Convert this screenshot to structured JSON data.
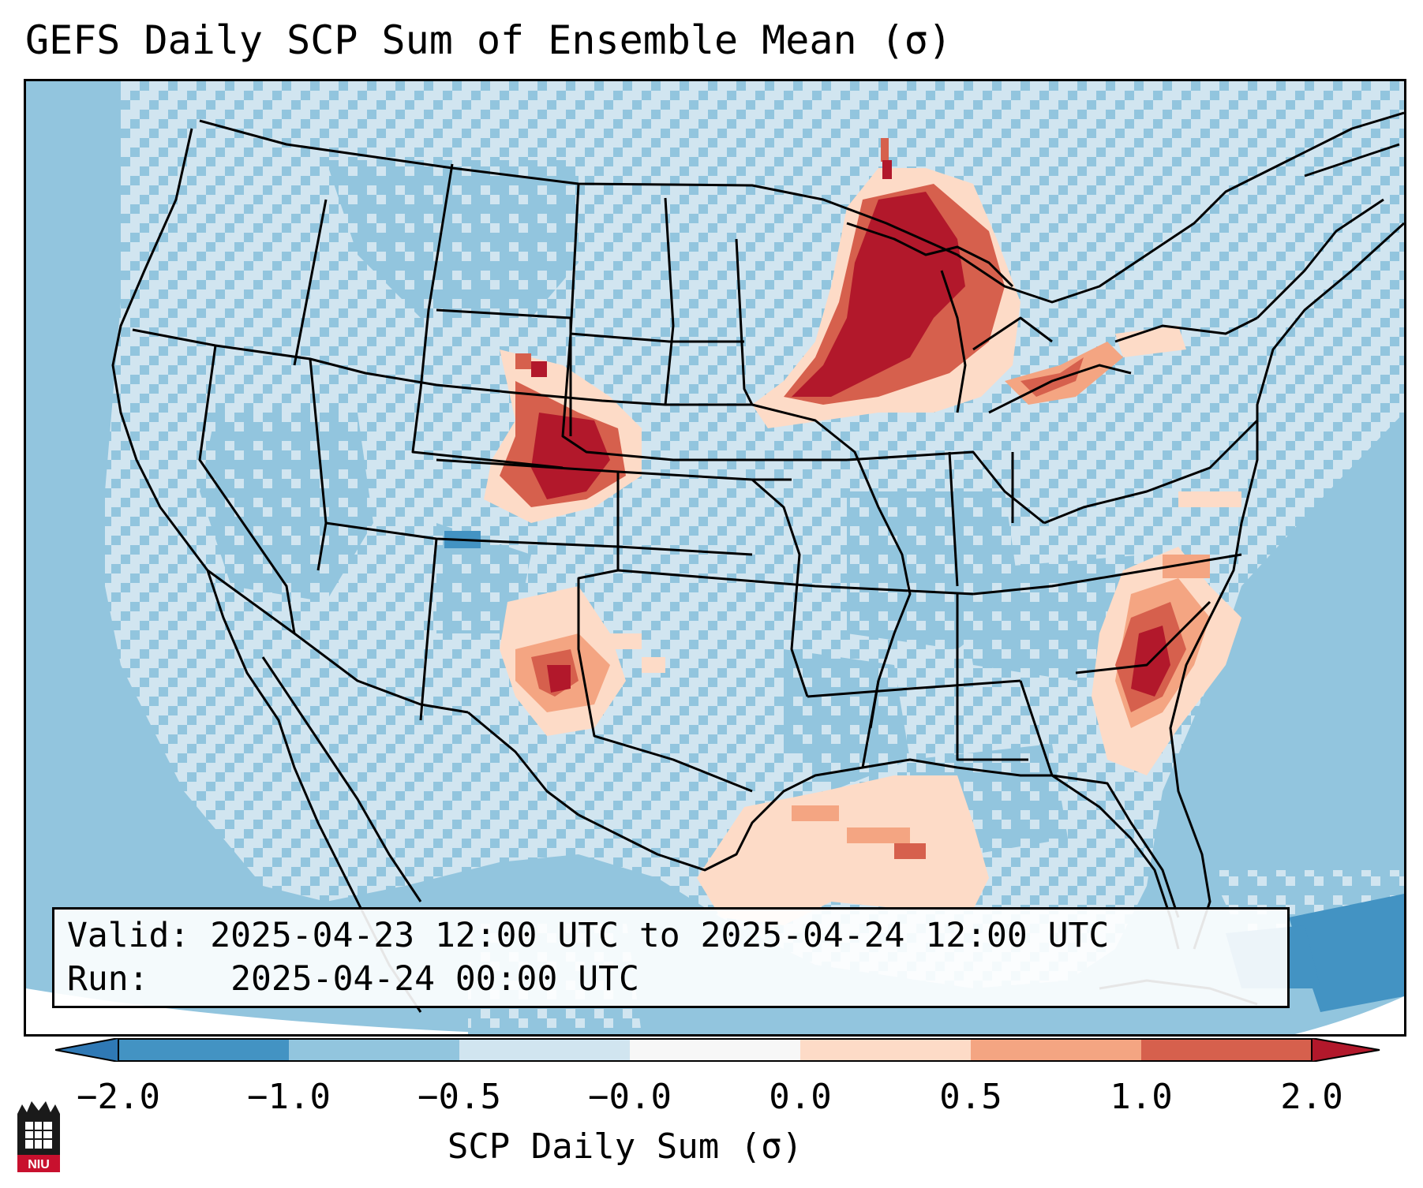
{
  "title": "GEFS Daily SCP Sum of Ensemble Mean (σ)",
  "info": {
    "valid_label": "Valid:",
    "valid_range": "2025-04-23 12:00 UTC to 2025-04-24 12:00 UTC",
    "run_label": "Run:",
    "run_time": "2025-04-24 00:00 UTC"
  },
  "colorbar": {
    "label": "SCP Daily Sum (σ)",
    "ticks": [
      "−2.0",
      "−1.0",
      "−0.5",
      "−0.0",
      "0.0",
      "0.5",
      "1.0",
      "2.0"
    ],
    "colors": [
      "#2f79b5",
      "#4393c3",
      "#92c5de",
      "#d1e5f0",
      "#f7f7f7",
      "#fddbc7",
      "#f4a582",
      "#d6604d",
      "#b2182b"
    ]
  },
  "logo": {
    "text": "NIU"
  },
  "chart_data": {
    "type": "heatmap",
    "variable": "SCP Daily Sum (σ)",
    "scale": [
      -2.0,
      2.0
    ],
    "regions_above_normal": [
      {
        "area": "Wisconsin / Michigan Lower Peninsula / Lake Michigan",
        "level": 2.0
      },
      {
        "area": "Northeast Colorado / Northwest Kansas",
        "level": 2.0
      },
      {
        "area": "Southeast New Mexico / West Texas",
        "level": 1.0
      },
      {
        "area": "Georgia / South Carolina coast",
        "level": 2.0
      },
      {
        "area": "Northern Gulf of Mexico",
        "level": 0.5
      },
      {
        "area": "Lake Erie / Southern Ontario",
        "level": 1.0
      }
    ]
  }
}
